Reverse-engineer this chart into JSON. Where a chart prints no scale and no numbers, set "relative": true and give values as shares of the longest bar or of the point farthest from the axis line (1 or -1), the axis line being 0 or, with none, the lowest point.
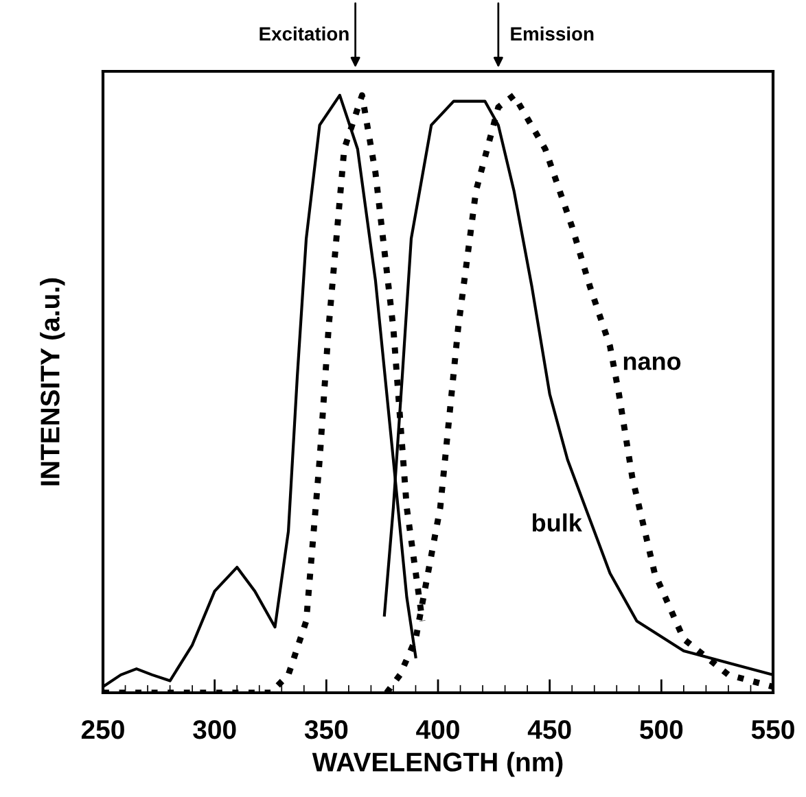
{
  "chart_data": {
    "type": "line",
    "relative": true,
    "xlabel": "WAVELENGTH (nm)",
    "ylabel": "INTENSITY (a.u.)",
    "xlim": [
      250,
      550
    ],
    "xticks": [
      250,
      300,
      350,
      400,
      450,
      500,
      550
    ],
    "tick_labels": "x",
    "grid": false,
    "legend": false,
    "marker": "none",
    "annotations": [
      {
        "text": "Excitation",
        "x": 363,
        "y": 1.0
      },
      {
        "text": "Emission",
        "x": 427,
        "y": 1.0
      }
    ],
    "series": [
      {
        "color": "#000000",
        "line_style": "solid",
        "x": [
          250,
          258,
          265,
          272,
          280,
          290,
          300,
          310,
          318,
          327,
          333,
          337,
          341,
          347,
          356,
          364,
          372,
          380,
          386,
          390
        ],
        "values": [
          0.01,
          0.03,
          0.04,
          0.03,
          0.02,
          0.08,
          0.17,
          0.21,
          0.17,
          0.11,
          0.27,
          0.53,
          0.76,
          0.95,
          1.0,
          0.91,
          0.69,
          0.39,
          0.16,
          0.06
        ]
      },
      {
        "color": "#000000",
        "line_style": "dotted",
        "x": [
          250,
          270,
          290,
          310,
          325,
          333,
          341,
          347,
          351,
          358,
          366,
          372,
          380,
          386,
          393
        ],
        "values": [
          0.0,
          0.0,
          0.0,
          0.0,
          0.0,
          0.03,
          0.12,
          0.39,
          0.61,
          0.91,
          1.0,
          0.87,
          0.61,
          0.31,
          0.12
        ]
      },
      {
        "name": "bulk",
        "color": "#000000",
        "line_style": "solid",
        "x": [
          376,
          380,
          384,
          388,
          397,
          407,
          414,
          421,
          427,
          434,
          442,
          450,
          458,
          467,
          477,
          489,
          510,
          530,
          550
        ],
        "values": [
          0.13,
          0.31,
          0.53,
          0.76,
          0.95,
          0.99,
          0.99,
          0.99,
          0.95,
          0.84,
          0.68,
          0.5,
          0.39,
          0.3,
          0.2,
          0.12,
          0.07,
          0.05,
          0.03
        ]
      },
      {
        "name": "nano",
        "color": "#000000",
        "line_style": "dotted",
        "x": [
          377,
          383,
          390,
          401,
          409,
          417,
          427,
          434,
          448,
          460,
          468,
          477,
          481,
          487,
          497,
          510,
          530,
          550
        ],
        "values": [
          0.0,
          0.03,
          0.09,
          0.31,
          0.61,
          0.84,
          0.98,
          1.0,
          0.91,
          0.78,
          0.68,
          0.58,
          0.5,
          0.36,
          0.2,
          0.09,
          0.03,
          0.01
        ]
      }
    ]
  }
}
